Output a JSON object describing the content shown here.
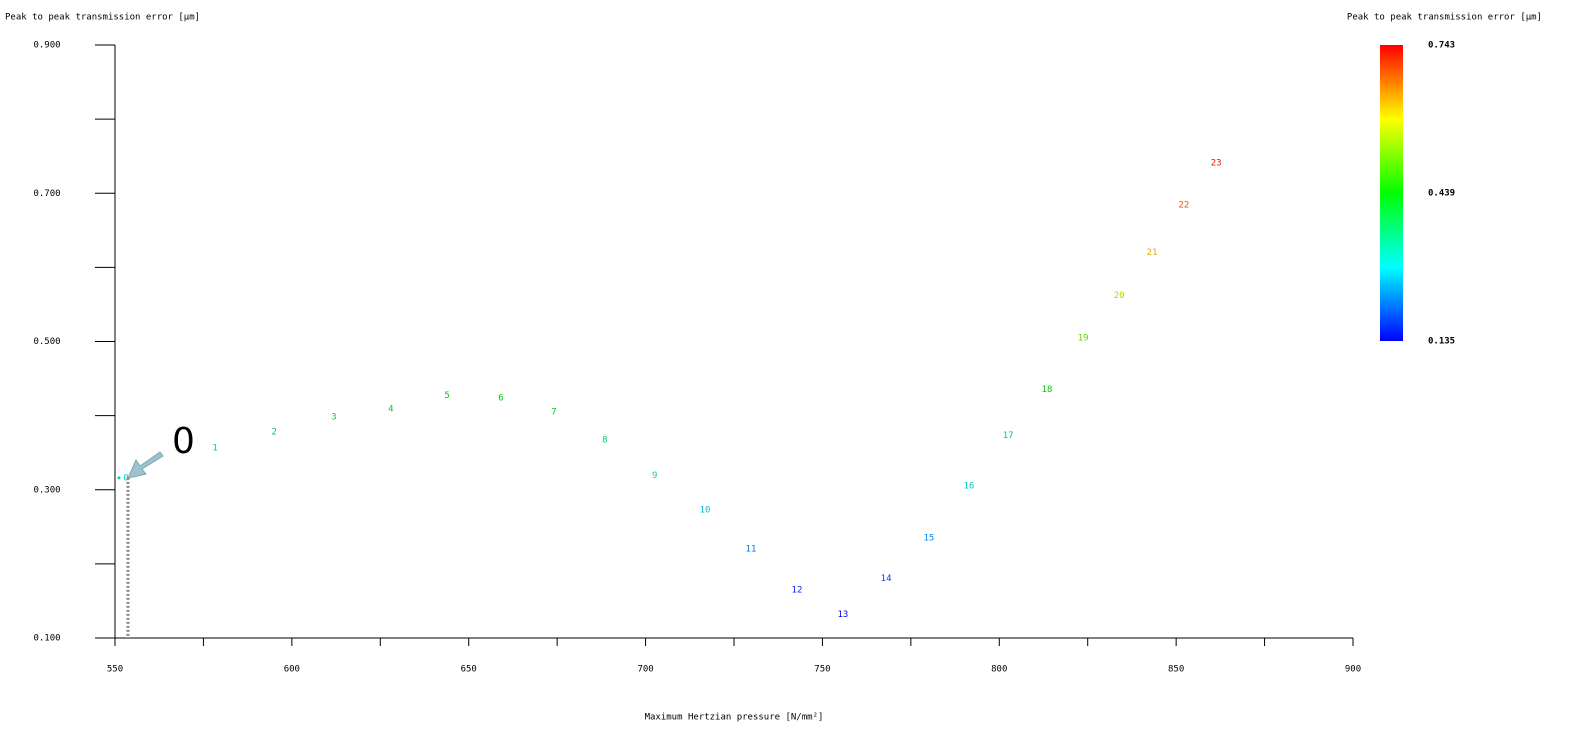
{
  "chart_data": {
    "type": "scatter",
    "title": "Peak to peak transmission error [μm]",
    "x_label": "Maximum Hertzian pressure [N/mm²]",
    "colorbar_title": "Peak to peak transmission error [μm]",
    "annotation": "0",
    "labels": [
      "0",
      "1",
      "2",
      "3",
      "4",
      "5",
      "6",
      "7",
      "8",
      "9",
      "10",
      "11",
      "12",
      "13",
      "14",
      "15",
      "16",
      "17",
      "18",
      "19",
      "20",
      "21",
      "22",
      "23"
    ],
    "x": [
      553.1,
      578.3,
      595.0,
      611.9,
      628.0,
      643.9,
      659.1,
      674.1,
      688.5,
      702.6,
      716.8,
      729.8,
      742.8,
      755.8,
      768.0,
      780.1,
      791.4,
      802.5,
      813.5,
      823.7,
      833.9,
      843.2,
      852.2,
      861.3
    ],
    "values": [
      0.316,
      0.356,
      0.378,
      0.398,
      0.409,
      0.427,
      0.424,
      0.405,
      0.367,
      0.319,
      0.273,
      0.22,
      0.165,
      0.132,
      0.18,
      0.235,
      0.305,
      0.373,
      0.435,
      0.505,
      0.562,
      0.62,
      0.684,
      0.741
    ],
    "xlim": [
      550,
      900
    ],
    "xticks": [
      550,
      600,
      650,
      700,
      750,
      800,
      850,
      900
    ],
    "xminorticks": [
      575,
      625,
      675,
      725,
      775,
      825,
      875
    ],
    "ylim": [
      0.1,
      0.9
    ],
    "yticks": [
      {
        "value": 0.1,
        "label": "0.100"
      },
      {
        "value": 0.3,
        "label": "0.300"
      },
      {
        "value": 0.5,
        "label": "0.500"
      },
      {
        "value": 0.7,
        "label": "0.700"
      },
      {
        "value": 0.9,
        "label": "0.900"
      }
    ],
    "yminorticks": [
      0.2,
      0.4,
      0.6,
      0.8
    ],
    "colormap": "jet",
    "clim": [
      0.135,
      0.743
    ],
    "cticks": [
      0.135,
      0.439,
      0.743
    ]
  }
}
